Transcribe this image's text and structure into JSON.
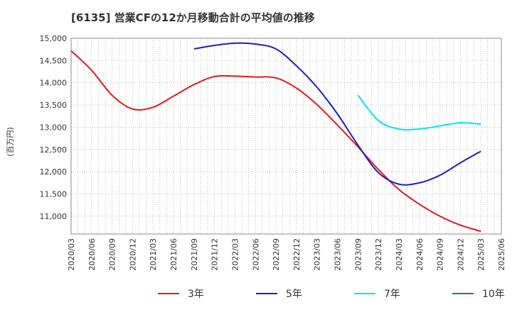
{
  "title": "[6135]  営業CFの12か月移動合計の平均値の推移",
  "chart_data": {
    "type": "line",
    "title": "[6135]  営業CFの12か月移動合計の平均値の推移",
    "ylabel": "(百万円)",
    "xlabel": "",
    "ylim": [
      10600,
      15000
    ],
    "yticks": [
      11000,
      11500,
      12000,
      12500,
      13000,
      13500,
      14000,
      14500,
      15000
    ],
    "ytick_labels": [
      "11,000",
      "11,500",
      "12,000",
      "12,500",
      "13,000",
      "13,500",
      "14,000",
      "14,500",
      "15,000"
    ],
    "xticks": [
      "2020/03",
      "2020/06",
      "2020/09",
      "2020/12",
      "2021/03",
      "2021/06",
      "2021/09",
      "2021/12",
      "2022/03",
      "2022/06",
      "2022/09",
      "2022/12",
      "2023/03",
      "2023/06",
      "2023/09",
      "2023/12",
      "2024/03",
      "2024/06",
      "2024/09",
      "2024/12",
      "2025/03",
      "2025/06"
    ],
    "grid": true,
    "legend_position": "bottom",
    "series": [
      {
        "name": "3年",
        "color": "#e41a1c",
        "points": [
          [
            "2020/03",
            14720
          ],
          [
            "2020/06",
            14280
          ],
          [
            "2020/09",
            13720
          ],
          [
            "2020/12",
            13410
          ],
          [
            "2021/03",
            13450
          ],
          [
            "2021/06",
            13700
          ],
          [
            "2021/09",
            13960
          ],
          [
            "2021/12",
            14140
          ],
          [
            "2022/03",
            14150
          ],
          [
            "2022/06",
            14130
          ],
          [
            "2022/09",
            14110
          ],
          [
            "2022/12",
            13880
          ],
          [
            "2023/03",
            13510
          ],
          [
            "2023/06",
            13050
          ],
          [
            "2023/09",
            12560
          ],
          [
            "2023/12",
            12050
          ],
          [
            "2024/03",
            11600
          ],
          [
            "2024/06",
            11270
          ],
          [
            "2024/09",
            11000
          ],
          [
            "2024/12",
            10800
          ],
          [
            "2025/03",
            10660
          ]
        ]
      },
      {
        "name": "5年",
        "color": "#1f1fc0",
        "points": [
          [
            "2021/09",
            14760
          ],
          [
            "2021/12",
            14840
          ],
          [
            "2022/03",
            14890
          ],
          [
            "2022/06",
            14870
          ],
          [
            "2022/09",
            14760
          ],
          [
            "2022/12",
            14380
          ],
          [
            "2023/03",
            13900
          ],
          [
            "2023/06",
            13300
          ],
          [
            "2023/09",
            12600
          ],
          [
            "2023/12",
            11980
          ],
          [
            "2024/03",
            11720
          ],
          [
            "2024/06",
            11750
          ],
          [
            "2024/09",
            11920
          ],
          [
            "2024/12",
            12200
          ],
          [
            "2025/03",
            12460
          ]
        ]
      },
      {
        "name": "7年",
        "color": "#00e5ee",
        "points": [
          [
            "2023/09",
            13720
          ],
          [
            "2023/12",
            13150
          ],
          [
            "2024/03",
            12960
          ],
          [
            "2024/06",
            12960
          ],
          [
            "2024/09",
            13030
          ],
          [
            "2024/12",
            13100
          ],
          [
            "2025/03",
            13070
          ]
        ]
      },
      {
        "name": "10年",
        "color": "#228b22",
        "points": []
      }
    ]
  }
}
